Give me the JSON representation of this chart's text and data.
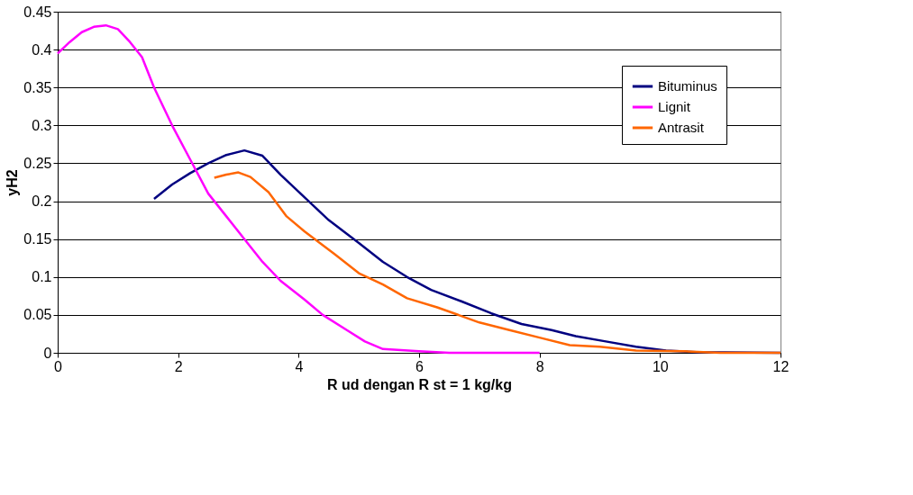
{
  "chart_data": {
    "type": "line",
    "xlabel": "R ud dengan R st = 1 kg/kg",
    "ylabel": "yH2",
    "xlim": [
      0,
      12
    ],
    "xticks": [
      0,
      2,
      4,
      6,
      8,
      10,
      12
    ],
    "ylim": [
      0,
      0.45
    ],
    "yticks": [
      0,
      0.05,
      0.1,
      0.15,
      0.2,
      0.25,
      0.3,
      0.35,
      0.4,
      0.45
    ],
    "grid": "y",
    "legend": "top right",
    "marker": "none",
    "line_style": "solid",
    "series": [
      {
        "name": "Bituminus",
        "color": "#000080",
        "x": [
          1.6,
          1.9,
          2.2,
          2.5,
          2.8,
          3.1,
          3.4,
          3.7,
          4.1,
          4.5,
          5.0,
          5.4,
          5.8,
          6.2,
          6.7,
          7.2,
          7.7,
          8.2,
          8.6,
          9.1,
          9.6,
          10.1,
          10.6,
          12
        ],
        "values": [
          0.203,
          0.222,
          0.237,
          0.25,
          0.261,
          0.267,
          0.26,
          0.235,
          0.205,
          0.175,
          0.145,
          0.12,
          0.1,
          0.083,
          0.068,
          0.052,
          0.038,
          0.03,
          0.022,
          0.015,
          0.008,
          0.003,
          0.001,
          0
        ]
      },
      {
        "name": "Lignit",
        "color": "#ff00ff",
        "x": [
          0,
          0.2,
          0.4,
          0.6,
          0.8,
          1.0,
          1.2,
          1.4,
          1.6,
          1.9,
          2.2,
          2.5,
          2.8,
          3.1,
          3.4,
          3.7,
          4.1,
          4.4,
          4.8,
          5.1,
          5.4,
          6.0,
          6.5,
          8.0
        ],
        "values": [
          0.395,
          0.41,
          0.423,
          0.43,
          0.432,
          0.427,
          0.41,
          0.39,
          0.35,
          0.3,
          0.255,
          0.21,
          0.18,
          0.15,
          0.12,
          0.095,
          0.07,
          0.05,
          0.03,
          0.015,
          0.005,
          0.002,
          0,
          0
        ]
      },
      {
        "name": "Antrasit",
        "color": "#ff6600",
        "x": [
          2.6,
          2.8,
          3.0,
          3.2,
          3.5,
          3.8,
          4.1,
          4.6,
          5.0,
          5.4,
          5.8,
          6.3,
          7.0,
          7.5,
          8.0,
          8.5,
          9.0,
          9.6,
          10.4,
          11,
          12
        ],
        "values": [
          0.231,
          0.235,
          0.238,
          0.232,
          0.212,
          0.18,
          0.16,
          0.13,
          0.105,
          0.09,
          0.072,
          0.06,
          0.04,
          0.03,
          0.02,
          0.01,
          0.008,
          0.003,
          0.002,
          0,
          0
        ]
      }
    ]
  }
}
